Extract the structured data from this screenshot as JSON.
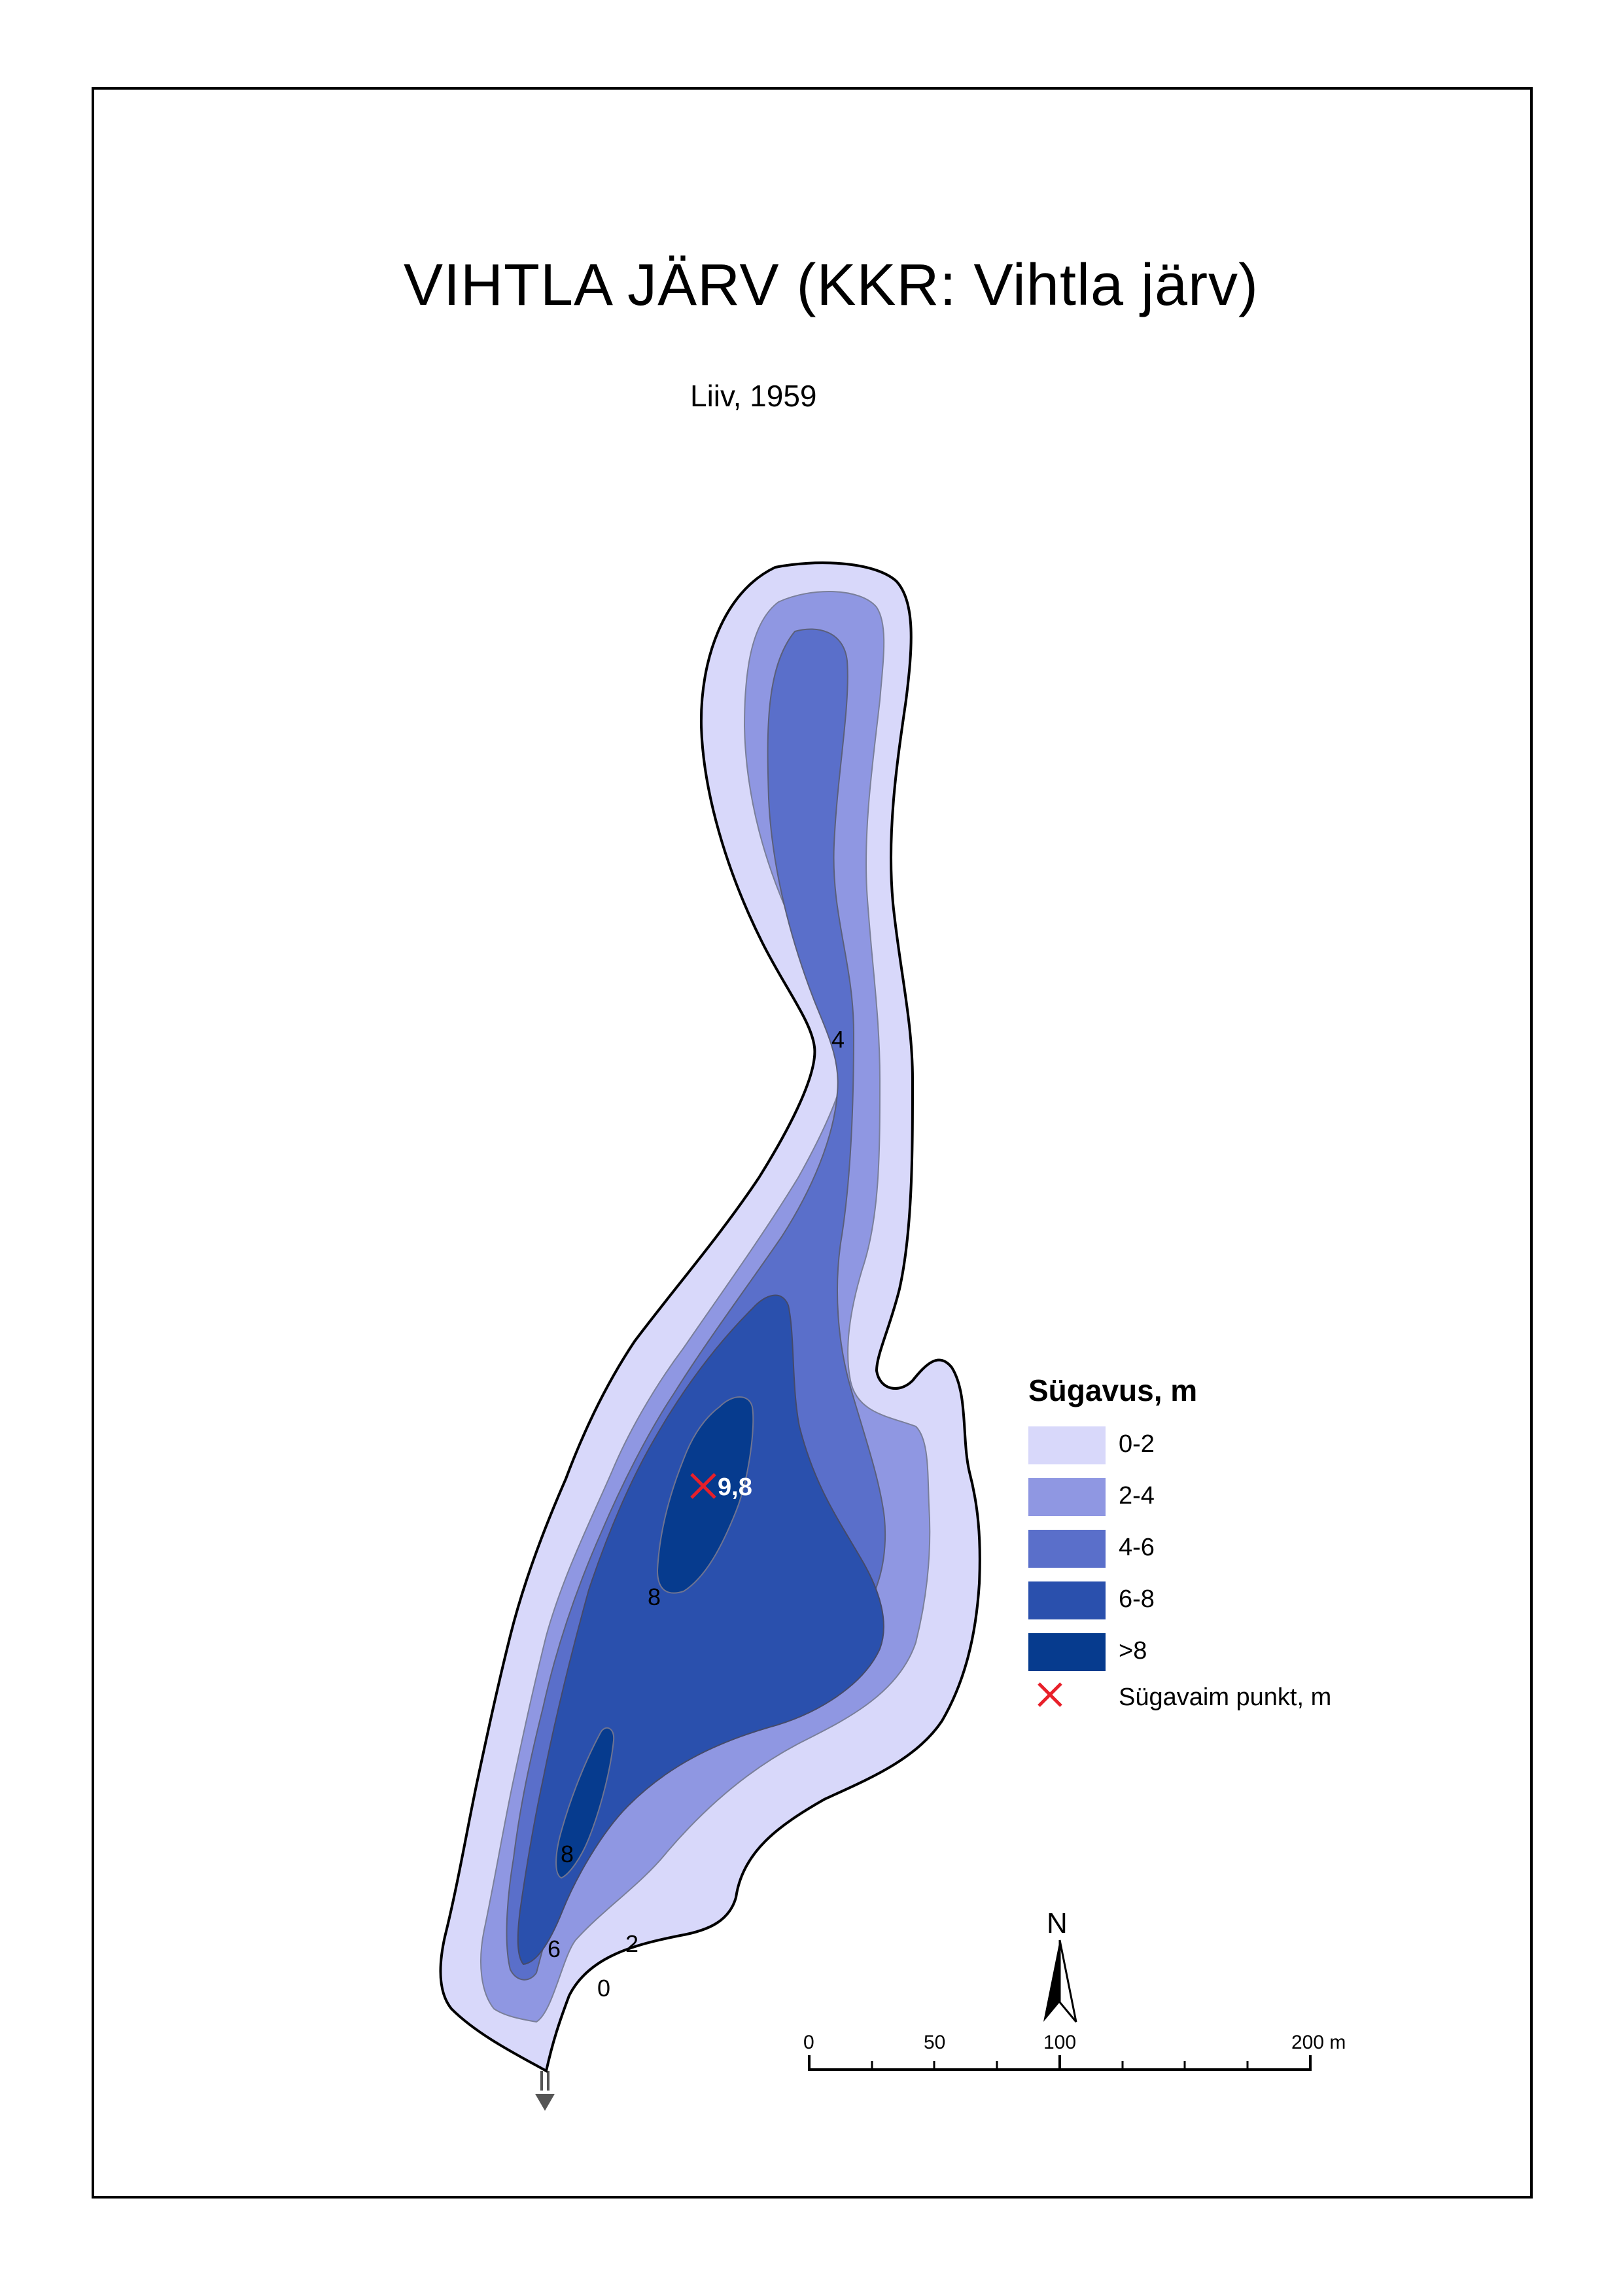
{
  "map": {
    "title": "VIHTLA JÄRV (KKR: Vihtla järv)",
    "author": "Liiv, 1959"
  },
  "legend": {
    "title": "Sügavus, m",
    "items": [
      {
        "label": "0-2",
        "color": "#d8d8fa"
      },
      {
        "label": "2-4",
        "color": "#8f97e2"
      },
      {
        "label": "4-6",
        "color": "#5a6fca"
      },
      {
        "label": "6-8",
        "color": "#2a50ad"
      },
      {
        "label": ">8",
        "color": "#063b8e"
      }
    ],
    "deepest_point_label": "Sügavaim punkt, m",
    "deepest_point_color": "#e8202a"
  },
  "depth_labels": {
    "north_4": "4",
    "max_depth": "9,8",
    "center_8": "8",
    "south_8": "8",
    "south_6": "6",
    "south_2": "2",
    "south_0": "0"
  },
  "north_arrow": {
    "letter": "N"
  },
  "scale_bar": {
    "ticks": [
      "0",
      "50",
      "100",
      "200 m"
    ]
  }
}
